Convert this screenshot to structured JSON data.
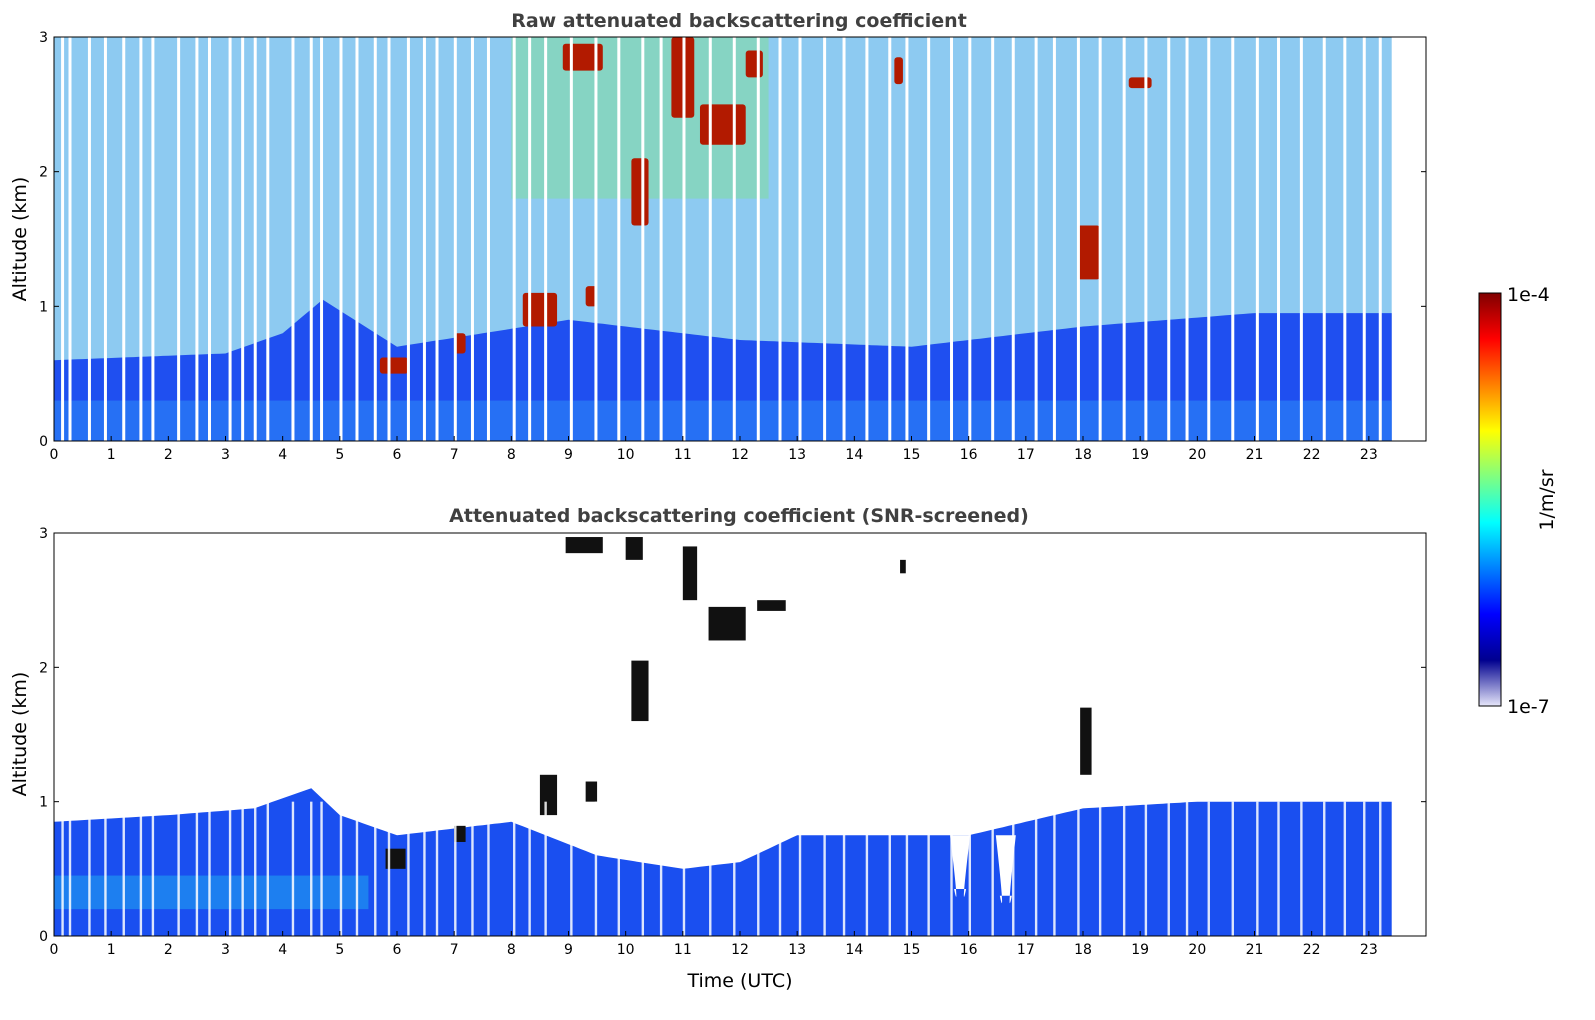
{
  "chart_data": [
    {
      "type": "heatmap",
      "title": "Raw attenuated backscattering coefficient",
      "ylabel": "Altitude (km)",
      "xlabel": "",
      "xlim": [
        0,
        24
      ],
      "ylim": [
        0,
        3
      ],
      "x_ticks": [
        "0",
        "1",
        "2",
        "3",
        "4",
        "5",
        "6",
        "7",
        "8",
        "9",
        "10",
        "11",
        "12",
        "13",
        "14",
        "15",
        "16",
        "17",
        "18",
        "19",
        "20",
        "21",
        "22",
        "23"
      ],
      "y_ticks": [
        "0",
        "1",
        "2",
        "3"
      ],
      "data_end_time": 23.4,
      "gap_times": [
        0.15,
        0.28,
        0.62,
        0.9,
        1.22,
        1.52,
        1.73,
        2.18,
        2.5,
        2.72,
        3.08,
        3.3,
        3.52,
        3.74,
        4.18,
        4.5,
        4.68,
        5.02,
        5.3,
        5.62,
        5.86,
        6.2,
        6.48,
        6.7,
        7.02,
        7.32,
        7.6,
        8.05,
        8.32,
        8.6,
        9.05,
        9.48,
        9.88,
        10.3,
        10.62,
        11.02,
        11.48,
        11.9,
        12.32,
        12.7,
        13.05,
        13.48,
        13.82,
        14.22,
        14.62,
        14.92,
        15.3,
        15.7,
        16.02,
        16.42,
        16.78,
        17.18,
        17.5,
        17.92,
        18.3,
        18.72,
        19.1,
        19.5,
        19.82,
        20.2,
        20.62,
        21.05,
        21.42,
        21.82,
        22.22,
        22.58,
        22.92,
        23.2
      ],
      "features": [
        {
          "kind": "boundary_layer",
          "altitude_km_by_hour": [
            [
              0,
              0.6
            ],
            [
              3,
              0.65
            ],
            [
              4,
              0.8
            ],
            [
              4.7,
              1.05
            ],
            [
              6,
              0.7
            ],
            [
              9,
              0.9
            ],
            [
              12,
              0.75
            ],
            [
              15,
              0.7
            ],
            [
              18,
              0.85
            ],
            [
              21,
              0.95
            ],
            [
              23.4,
              0.95
            ]
          ]
        },
        {
          "kind": "cloud",
          "t_start": 8.9,
          "t_end": 9.6,
          "alt_low_km": 2.75,
          "alt_high_km": 2.95
        },
        {
          "kind": "cloud",
          "t_start": 10.8,
          "t_end": 11.2,
          "alt_low_km": 2.4,
          "alt_high_km": 3.0
        },
        {
          "kind": "cloud",
          "t_start": 11.3,
          "t_end": 12.1,
          "alt_low_km": 2.2,
          "alt_high_km": 2.5
        },
        {
          "kind": "cloud",
          "t_start": 12.1,
          "t_end": 12.4,
          "alt_low_km": 2.7,
          "alt_high_km": 2.9
        },
        {
          "kind": "cloud",
          "t_start": 10.1,
          "t_end": 10.4,
          "alt_low_km": 1.6,
          "alt_high_km": 2.1
        },
        {
          "kind": "cloud",
          "t_start": 8.2,
          "t_end": 8.8,
          "alt_low_km": 0.85,
          "alt_high_km": 1.1
        },
        {
          "kind": "cloud",
          "t_start": 9.3,
          "t_end": 9.5,
          "alt_low_km": 1.0,
          "alt_high_km": 1.15
        },
        {
          "kind": "cloud",
          "t_start": 17.9,
          "t_end": 18.3,
          "alt_low_km": 1.2,
          "alt_high_km": 1.6
        },
        {
          "kind": "cloud",
          "t_start": 14.7,
          "t_end": 14.85,
          "alt_low_km": 2.65,
          "alt_high_km": 2.85
        },
        {
          "kind": "cloud",
          "t_start": 18.8,
          "t_end": 19.2,
          "alt_low_km": 2.62,
          "alt_high_km": 2.7
        },
        {
          "kind": "cloud",
          "t_start": 5.7,
          "t_end": 6.2,
          "alt_low_km": 0.5,
          "alt_high_km": 0.62
        },
        {
          "kind": "cloud",
          "t_start": 7.0,
          "t_end": 7.2,
          "alt_low_km": 0.65,
          "alt_high_km": 0.8
        }
      ]
    },
    {
      "type": "heatmap",
      "title": "Attenuated backscattering coefficient (SNR-screened)",
      "ylabel": "Altitude (km)",
      "xlabel": "Time (UTC)",
      "xlim": [
        0,
        24
      ],
      "ylim": [
        0,
        3
      ],
      "x_ticks": [
        "0",
        "1",
        "2",
        "3",
        "4",
        "5",
        "6",
        "7",
        "8",
        "9",
        "10",
        "11",
        "12",
        "13",
        "14",
        "15",
        "16",
        "17",
        "18",
        "19",
        "20",
        "21",
        "22",
        "23"
      ],
      "y_ticks": [
        "0",
        "1",
        "2",
        "3"
      ],
      "data_end_time": 23.4,
      "screened_top_km_by_hour": [
        [
          0,
          0.85
        ],
        [
          2,
          0.9
        ],
        [
          3.5,
          0.95
        ],
        [
          4.5,
          1.1
        ],
        [
          5,
          0.9
        ],
        [
          6,
          0.75
        ],
        [
          8,
          0.85
        ],
        [
          9.5,
          0.6
        ],
        [
          11,
          0.5
        ],
        [
          12,
          0.55
        ],
        [
          13,
          0.75
        ],
        [
          16,
          0.75
        ],
        [
          17,
          0.85
        ],
        [
          18,
          0.95
        ],
        [
          20,
          1.0
        ],
        [
          23.4,
          1.0
        ]
      ],
      "dips": [
        {
          "t": 15.85,
          "alt_km": 0.35
        },
        {
          "t": 16.65,
          "alt_km": 0.3
        }
      ],
      "cloud_marks": [
        {
          "t_start": 8.95,
          "t_end": 9.6,
          "alt_low_km": 2.85,
          "alt_high_km": 2.97
        },
        {
          "t_start": 10.0,
          "t_end": 10.3,
          "alt_low_km": 2.8,
          "alt_high_km": 2.97
        },
        {
          "t_start": 11.0,
          "t_end": 11.25,
          "alt_low_km": 2.5,
          "alt_high_km": 2.9
        },
        {
          "t_start": 11.45,
          "t_end": 12.1,
          "alt_low_km": 2.2,
          "alt_high_km": 2.45
        },
        {
          "t_start": 12.3,
          "t_end": 12.8,
          "alt_low_km": 2.42,
          "alt_high_km": 2.5
        },
        {
          "t_start": 10.1,
          "t_end": 10.4,
          "alt_low_km": 1.6,
          "alt_high_km": 2.05
        },
        {
          "t_start": 14.8,
          "t_end": 14.9,
          "alt_low_km": 2.7,
          "alt_high_km": 2.8
        },
        {
          "t_start": 17.95,
          "t_end": 18.15,
          "alt_low_km": 1.2,
          "alt_high_km": 1.7
        },
        {
          "t_start": 8.5,
          "t_end": 8.8,
          "alt_low_km": 0.9,
          "alt_high_km": 1.2
        },
        {
          "t_start": 9.3,
          "t_end": 9.5,
          "alt_low_km": 1.0,
          "alt_high_km": 1.15
        },
        {
          "t_start": 5.8,
          "t_end": 6.15,
          "alt_low_km": 0.5,
          "alt_high_km": 0.65
        },
        {
          "t_start": 7.0,
          "t_end": 7.2,
          "alt_low_km": 0.7,
          "alt_high_km": 0.82
        }
      ]
    }
  ],
  "colorbar": {
    "label": "1/m/sr",
    "max_label": "1e-4",
    "min_label": "1e-7",
    "scale": "log",
    "colormap": "jet",
    "colors": [
      "#e6e6fa",
      "#00008f",
      "#0000ff",
      "#0080ff",
      "#00ffff",
      "#80ff80",
      "#ffff00",
      "#ff8000",
      "#ff0000",
      "#800000"
    ]
  }
}
